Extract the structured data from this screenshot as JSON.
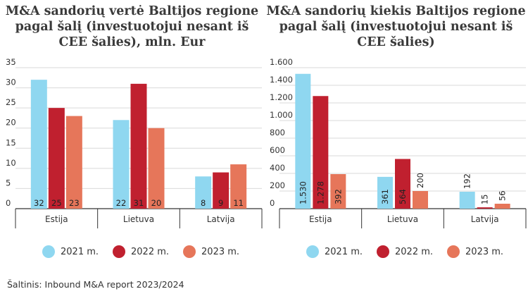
{
  "colors": {
    "y2021": "#8fd7f0",
    "y2022": "#c0202f",
    "y2023": "#e6765a",
    "grid": "#d9d9d9",
    "axis": "#333333"
  },
  "legend": [
    {
      "label": "2021 m.",
      "color": "#8fd7f0"
    },
    {
      "label": "2022 m.",
      "color": "#c0202f"
    },
    {
      "label": "2023 m.",
      "color": "#e6765a"
    }
  ],
  "source": "Šaltinis: Inbound M&A report 2023/2024",
  "chart_data": [
    {
      "type": "bar",
      "title": "M&A sandorių vertė Baltijos regione pagal šalį (investuotojui nesant iš CEE šalies), mln. Eur",
      "title_lines": [
        "M&A sandorių vertė Baltijos regione",
        "pagal šalį (investuotojui nesant iš",
        "CEE šalies), mln. Eur"
      ],
      "categories": [
        "Estija",
        "Lietuva",
        "Latvija"
      ],
      "ylim": [
        0,
        35
      ],
      "yticks": [
        0,
        5,
        10,
        15,
        20,
        25,
        30,
        35
      ],
      "ytick_labels": [
        "0",
        "5",
        "10",
        "15",
        "20",
        "25",
        "30",
        "35"
      ],
      "label_style": "horizontal",
      "series": [
        {
          "name": "2021 m.",
          "values": [
            32,
            22,
            8
          ],
          "labels": [
            "32",
            "22",
            "8"
          ]
        },
        {
          "name": "2022 m.",
          "values": [
            25,
            31,
            9
          ],
          "labels": [
            "25",
            "31",
            "9"
          ]
        },
        {
          "name": "2023 m.",
          "values": [
            23,
            20,
            11
          ],
          "labels": [
            "23",
            "20",
            "11"
          ]
        }
      ],
      "grid": true,
      "legend_position": "bottom"
    },
    {
      "type": "bar",
      "title": "M&A sandorių kiekis Baltijos regione pagal šalį (investuotojui nesant iš CEE šalies)",
      "title_lines": [
        "M&A sandorių kiekis Baltijos regione",
        "pagal šalį (investuotojui nesant iš",
        "CEE šalies)"
      ],
      "categories": [
        "Estija",
        "Lietuva",
        "Latvija"
      ],
      "ylim": [
        0,
        1600
      ],
      "yticks": [
        0,
        200,
        400,
        600,
        800,
        1000,
        1200,
        1400,
        1600
      ],
      "ytick_labels": [
        "0",
        "200",
        "400",
        "600",
        "800",
        "1.000",
        "1.200",
        "1.400",
        "1.600"
      ],
      "label_style": "vertical",
      "series": [
        {
          "name": "2021 m.",
          "values": [
            1530,
            361,
            192
          ],
          "labels": [
            "1.530",
            "361",
            "192"
          ]
        },
        {
          "name": "2022 m.",
          "values": [
            1278,
            564,
            15
          ],
          "labels": [
            "1.278",
            "564",
            "15"
          ]
        },
        {
          "name": "2023 m.",
          "values": [
            392,
            200,
            56
          ],
          "labels": [
            "392",
            "200",
            "56"
          ]
        }
      ],
      "grid": true,
      "legend_position": "bottom"
    }
  ]
}
